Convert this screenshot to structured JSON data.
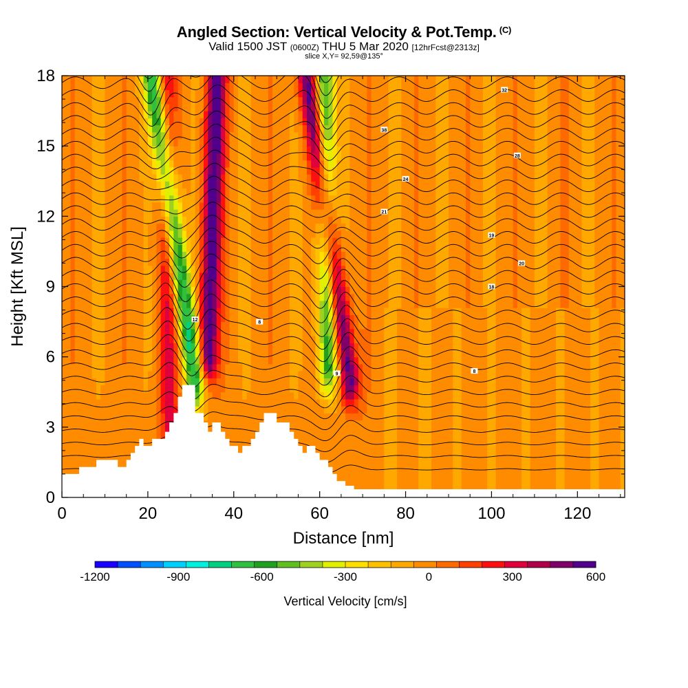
{
  "header": {
    "title": "Angled Section: Vertical Velocity & Pot.Temp.",
    "title_mark": "(C)",
    "valid_prefix": "Valid 1500 JST",
    "valid_utc": "(0600Z)",
    "valid_date": "THU 5 Mar 2020",
    "forecast": "[12hrFcst@2313z]",
    "slice": "slice X,Y= 92,59@135°"
  },
  "chart_data": {
    "type": "heatmap",
    "xlabel": "Distance [nm]",
    "ylabel": "Height [Kft MSL]",
    "xlim": [
      0,
      131
    ],
    "ylim": [
      0,
      18
    ],
    "x_ticks": [
      "0",
      "20",
      "40",
      "60",
      "80",
      "100",
      "120"
    ],
    "x_tick_values": [
      0,
      20,
      40,
      60,
      80,
      100,
      120
    ],
    "y_ticks": [
      "0",
      "3",
      "6",
      "9",
      "12",
      "15",
      "18"
    ],
    "y_tick_values": [
      0,
      3,
      6,
      9,
      12,
      15,
      18
    ],
    "colorbar": {
      "title": "Vertical Velocity [cm/s]",
      "labels": [
        "-1200",
        "-900",
        "-600",
        "-300",
        "0",
        "300",
        "600"
      ],
      "label_values": [
        -1200,
        -900,
        -600,
        -300,
        0,
        300,
        600
      ],
      "range": [
        -1200,
        600
      ],
      "colors": [
        "#1a00ff",
        "#0050ff",
        "#0090ff",
        "#00d0ff",
        "#00f0e0",
        "#00d080",
        "#30c040",
        "#20a020",
        "#60c020",
        "#a0d020",
        "#e0f000",
        "#ffe000",
        "#ffc000",
        "#ffa800",
        "#ff8c00",
        "#ff6a00",
        "#ff4000",
        "#ff1010",
        "#e0003c",
        "#b0004a",
        "#80006a",
        "#50008a"
      ]
    },
    "terrain_profile": {
      "x": [
        0,
        4,
        4,
        8,
        8,
        13,
        13,
        15,
        15,
        16,
        16,
        17,
        17,
        18,
        18,
        19,
        19,
        21,
        21,
        24,
        24,
        25,
        25,
        26,
        26,
        27,
        27,
        28,
        28,
        31,
        31,
        33,
        33,
        34,
        34,
        35,
        35,
        37,
        37,
        38,
        38,
        39,
        39,
        41,
        41,
        42,
        42,
        44,
        44,
        45,
        45,
        46,
        46,
        47,
        47,
        48,
        48,
        50,
        50,
        53,
        53,
        54,
        54,
        55,
        55,
        56,
        56,
        57,
        57,
        59,
        59,
        60,
        60,
        62,
        62,
        63,
        63,
        64,
        64,
        66,
        66,
        68,
        68,
        70,
        70,
        72,
        72,
        131
      ],
      "y": [
        1.0,
        1.0,
        1.3,
        1.3,
        1.6,
        1.6,
        1.3,
        1.3,
        1.6,
        1.6,
        1.9,
        1.9,
        2.2,
        2.2,
        2.5,
        2.5,
        2.2,
        2.2,
        2.5,
        2.5,
        2.8,
        2.8,
        3.2,
        3.2,
        3.6,
        3.6,
        4.3,
        4.3,
        4.8,
        4.8,
        3.6,
        3.6,
        3.2,
        3.2,
        2.8,
        2.8,
        3.2,
        3.2,
        2.8,
        2.8,
        2.5,
        2.5,
        2.2,
        2.2,
        1.9,
        1.9,
        2.2,
        2.2,
        2.5,
        2.5,
        2.8,
        2.8,
        3.2,
        3.2,
        3.6,
        3.6,
        3.6,
        3.6,
        3.2,
        3.2,
        2.8,
        2.8,
        2.5,
        2.5,
        2.2,
        2.2,
        1.9,
        1.9,
        2.2,
        2.2,
        1.9,
        1.9,
        1.6,
        1.6,
        1.3,
        1.3,
        1.0,
        1.0,
        0.7,
        0.7,
        0.5,
        0.5,
        0.35,
        0.35,
        0.35,
        0.35,
        0.35,
        0.35
      ]
    },
    "updraft_cores": [
      {
        "x_top": 36,
        "x_bottom": 34,
        "y_bottom": 6.0,
        "value_peak": 600
      },
      {
        "x_top": 57,
        "x_bottom": 67,
        "y_bottom": 5.0,
        "value_peak": 600
      },
      {
        "x_top": 24,
        "x_bottom": 25,
        "y_bottom": 3.0,
        "value_peak": 300
      }
    ],
    "downdraft_cores": [
      {
        "x_top": 21,
        "x_bottom": 31,
        "y_bottom": 5.0,
        "value_peak": -700
      },
      {
        "x_top": 61,
        "x_bottom": 62,
        "y_bottom": 5.5,
        "value_peak": -600
      }
    ],
    "theta_contour_labels": [
      {
        "x": 96,
        "y": 5.4,
        "text": "8"
      },
      {
        "x": 46,
        "y": 7.5,
        "text": "8"
      },
      {
        "x": 64,
        "y": 5.3,
        "text": "9"
      },
      {
        "x": 31,
        "y": 7.6,
        "text": "12"
      },
      {
        "x": 100,
        "y": 9.0,
        "text": "18"
      },
      {
        "x": 100,
        "y": 11.2,
        "text": "19"
      },
      {
        "x": 107,
        "y": 10.0,
        "text": "20"
      },
      {
        "x": 75,
        "y": 12.2,
        "text": "21"
      },
      {
        "x": 80,
        "y": 13.6,
        "text": "24"
      },
      {
        "x": 106,
        "y": 14.6,
        "text": "28"
      },
      {
        "x": 103,
        "y": 17.4,
        "text": "32"
      },
      {
        "x": 75,
        "y": 15.7,
        "text": "38"
      }
    ]
  }
}
